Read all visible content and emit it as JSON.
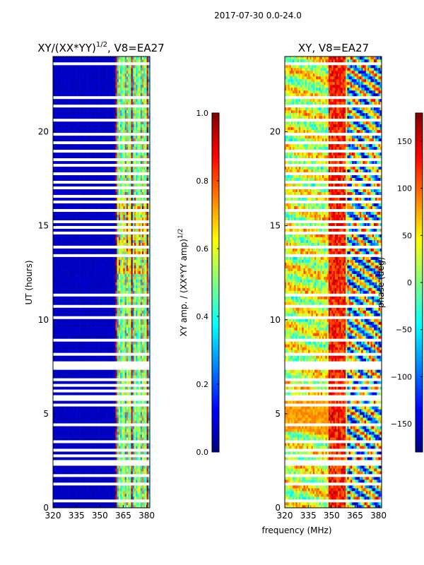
{
  "figure": {
    "suptitle": "2017-07-30 0.0-24.0",
    "shared_xlabel": "frequency (MHz)"
  },
  "chart_data": [
    {
      "type": "heatmap",
      "id": "amp",
      "title": "XY/(XX*YY)",
      "title_exponent": "1/2",
      "title_suffix": ", V8=EA27",
      "xlabel": "",
      "ylabel": "UT (hours)",
      "x_range": [
        320,
        382
      ],
      "y_range": [
        0,
        24
      ],
      "x_ticks": [
        "320",
        "335",
        "350",
        "365",
        "380"
      ],
      "x_tick_values": [
        320,
        335,
        350,
        365,
        380
      ],
      "y_ticks": [
        "0",
        "5",
        "10",
        "15",
        "20"
      ],
      "y_tick_values": [
        0,
        5,
        10,
        15,
        20
      ],
      "colorbar": {
        "label": "XY amp. / (XX*YY amp)",
        "label_exponent": "1/2",
        "range": [
          0.0,
          1.0
        ],
        "ticks": [
          "0.0",
          "0.2",
          "0.4",
          "0.6",
          "0.8",
          "1.0"
        ],
        "tick_values": [
          0.0,
          0.2,
          0.4,
          0.6,
          0.8,
          1.0
        ],
        "colormap": "jet"
      },
      "features": {
        "background_value": 0.05,
        "active_band_start_mhz": 360,
        "active_band_values": [
          0.9,
          0.35,
          0.65,
          0.4,
          0.5,
          0.6,
          0.35,
          0.7,
          0.45,
          0.5
        ],
        "high_activity_hours": [
          12.5,
          16.5
        ],
        "flagged_gap_hours": [
          7.35,
          7.85
        ]
      }
    },
    {
      "type": "heatmap",
      "id": "phase",
      "title": "XY, V8=EA27",
      "xlabel": "",
      "ylabel": "",
      "x_range": [
        320,
        382
      ],
      "y_range": [
        0,
        24
      ],
      "x_ticks": [
        "320",
        "335",
        "350",
        "365",
        "380"
      ],
      "x_tick_values": [
        320,
        335,
        350,
        365,
        380
      ],
      "y_ticks": [
        "0",
        "5",
        "10",
        "15",
        "20"
      ],
      "y_tick_values": [
        0,
        5,
        10,
        15,
        20
      ],
      "colorbar": {
        "label": "phase (deg)",
        "range": [
          -180,
          180
        ],
        "ticks": [
          "−150",
          "−100",
          "−50",
          "0",
          "50",
          "100",
          "150"
        ],
        "tick_values": [
          -150,
          -100,
          -50,
          0,
          50,
          100,
          150
        ],
        "colormap": "jet"
      },
      "features": {
        "red_band_start_mhz": 348,
        "red_band_end_mhz": 359,
        "low_phase_band_start_mhz": 360,
        "orange_hours": [
          4.0,
          6.0
        ],
        "flagged_gap_hours": [
          7.35,
          7.85
        ]
      }
    }
  ],
  "missing_rows_hours": [
    0.4,
    0.6,
    0.9,
    1.3,
    1.75,
    2.3,
    2.5,
    2.75,
    3.1,
    3.5,
    3.75,
    4.05,
    4.45,
    4.65,
    4.95,
    5.45,
    5.75,
    5.9,
    6.25,
    6.5,
    6.85,
    7.05,
    8.2,
    8.9,
    9.6,
    10.15,
    10.75,
    11.3,
    11.55,
    12.45,
    12.75,
    13.45,
    13.85,
    14.6,
    14.9,
    15.2,
    15.6,
    15.8,
    16.25,
    16.6,
    17.0,
    17.3,
    17.8,
    18.2,
    18.55,
    18.95,
    19.45,
    19.9,
    20.4,
    20.65,
    21.0,
    21.35,
    21.85,
    22.2,
    22.5,
    22.8,
    23.1,
    23.6
  ]
}
